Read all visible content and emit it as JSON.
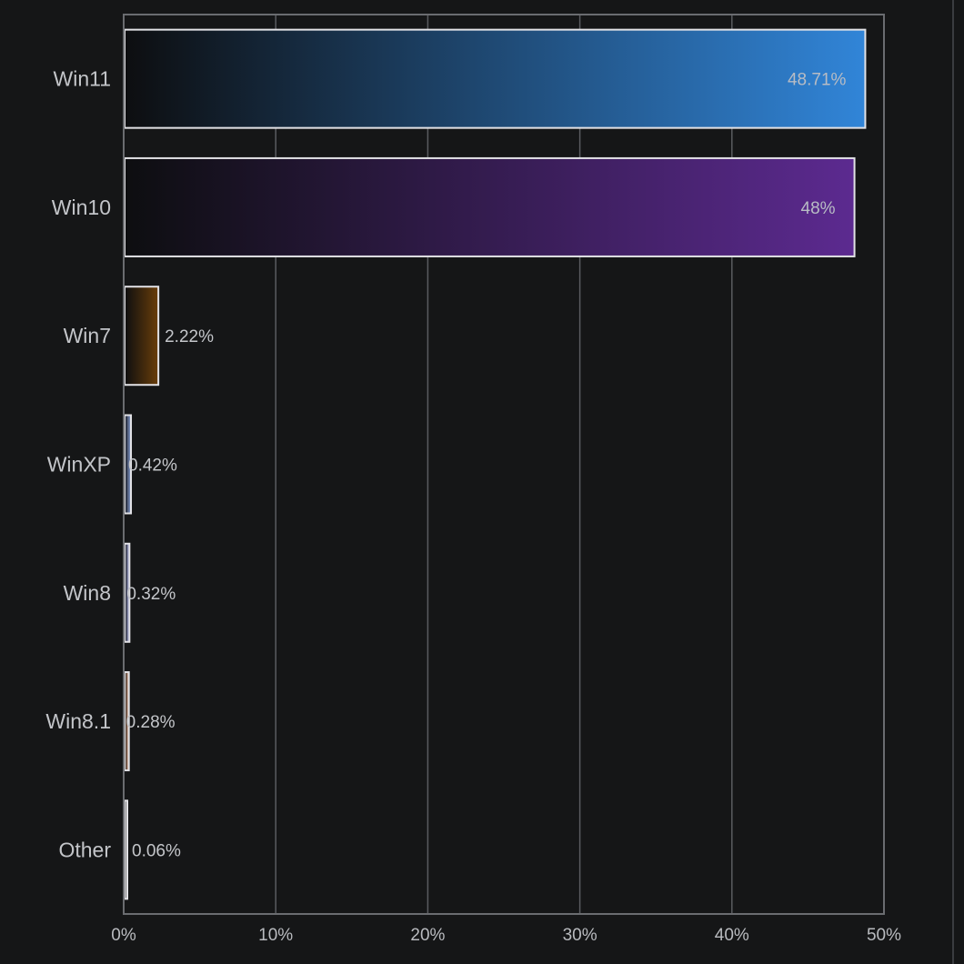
{
  "chart_data": {
    "type": "bar",
    "orientation": "horizontal",
    "categories": [
      "Win11",
      "Win10",
      "Win7",
      "WinXP",
      "Win8",
      "Win8.1",
      "Other"
    ],
    "values": [
      48.71,
      48,
      2.22,
      0.42,
      0.32,
      0.28,
      0.06
    ],
    "value_labels": [
      "48.71%",
      "48%",
      "2.22%",
      "0.42%",
      "0.32%",
      "0.28%",
      "0.06%"
    ],
    "bar_colors": [
      "#3185d8",
      "#5c2a90",
      "#6a3e0a",
      "#8ea7df",
      "#b7bdf0",
      "#f1b998",
      "#e6e6e6"
    ],
    "xlim": [
      0,
      50
    ],
    "xticks": [
      0,
      10,
      20,
      30,
      40,
      50
    ],
    "xtick_labels": [
      "0%",
      "10%",
      "20%",
      "30%",
      "40%",
      "50%"
    ],
    "title": "",
    "xlabel": "",
    "ylabel": "",
    "grid": "vertical",
    "legend": "none"
  },
  "colors": {
    "background": "#151617",
    "grid": "#5a5c60",
    "axis": "#6a6c70",
    "bar_outline": "#e2e2e6",
    "text": "#c3c5c9"
  }
}
